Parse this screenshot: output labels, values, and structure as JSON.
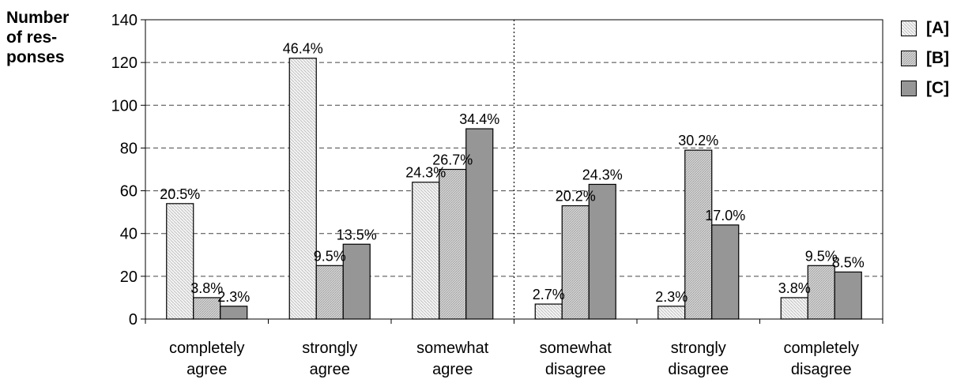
{
  "chart_data": {
    "type": "bar",
    "ylabel": [
      "Number",
      "of res-",
      "ponses"
    ],
    "ylim": [
      0,
      140
    ],
    "yticks": [
      0,
      20,
      40,
      60,
      80,
      100,
      120,
      140
    ],
    "grid": true,
    "legend_position": "right",
    "categories": [
      [
        "completely",
        "agree"
      ],
      [
        "strongly",
        "agree"
      ],
      [
        "somewhat",
        "agree"
      ],
      [
        "somewhat",
        "disagree"
      ],
      [
        "strongly",
        "disagree"
      ],
      [
        "completely",
        "disagree"
      ]
    ],
    "series": [
      {
        "name": "[A]",
        "values": [
          54,
          122,
          64,
          7,
          6,
          10
        ],
        "labels": [
          "20.5%",
          "46.4%",
          "24.3%",
          "2.7%",
          "2.3%",
          "3.8%"
        ],
        "color": "#f2f2f2",
        "pattern": "diag-light"
      },
      {
        "name": "[B]",
        "values": [
          10,
          25,
          70,
          53,
          79,
          25
        ],
        "labels": [
          "3.8%",
          "9.5%",
          "26.7%",
          "20.2%",
          "30.2%",
          "9.5%"
        ],
        "color": "#cccccc",
        "pattern": "diag-dense"
      },
      {
        "name": "[C]",
        "values": [
          6,
          35,
          89,
          63,
          44,
          22
        ],
        "labels": [
          "2.3%",
          "13.5%",
          "34.4%",
          "24.3%",
          "17.0%",
          "8.5%"
        ],
        "color": "#969696",
        "pattern": "solid"
      }
    ],
    "divider_after_category": 2
  }
}
